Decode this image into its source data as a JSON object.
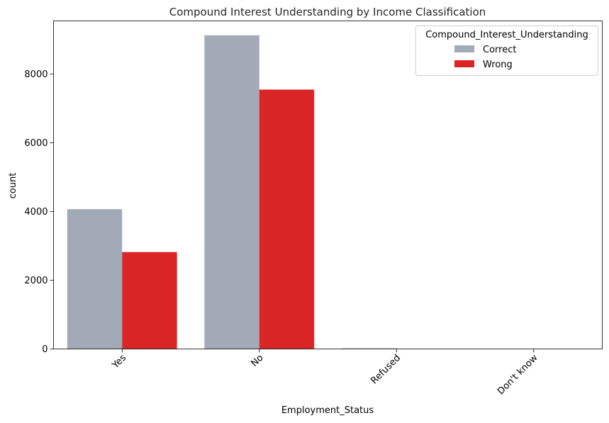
{
  "chart_data": {
    "type": "bar",
    "title": "Compound Interest Understanding by Income Classification",
    "xlabel": "Employment_Status",
    "ylabel": "count",
    "categories": [
      "Yes",
      "No",
      "Refused",
      "Don't know"
    ],
    "series": [
      {
        "name": "Correct",
        "color": "#a2a9b7",
        "values": [
          4070,
          9130,
          20,
          0
        ]
      },
      {
        "name": "Wrong",
        "color": "#da2527",
        "values": [
          2820,
          7550,
          0,
          0
        ]
      }
    ],
    "ylim": [
      0,
      9550
    ],
    "yticks": [
      0,
      2000,
      4000,
      6000,
      8000
    ],
    "legend": {
      "title": "Compound_Interest_Understanding",
      "placement": "top-right"
    },
    "grid": false
  }
}
